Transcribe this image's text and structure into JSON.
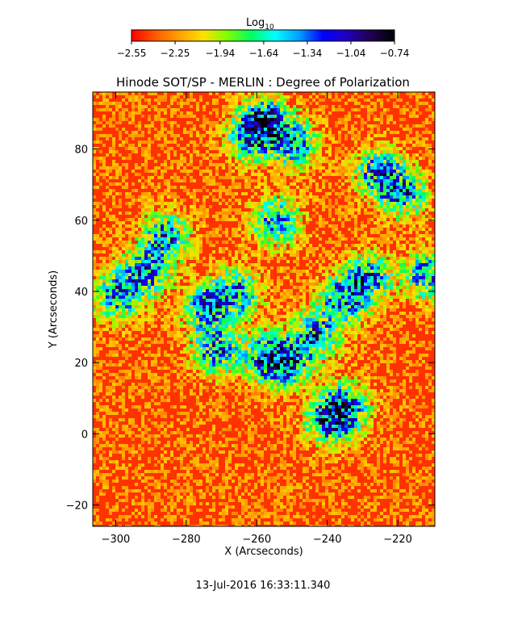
{
  "chart_data": {
    "type": "heatmap",
    "title": "Hinode SOT/SP - MERLIN : Degree of Polarization",
    "xlabel": "X (Arcseconds)",
    "ylabel": "Y (Arcseconds)",
    "xlim": [
      -306.5,
      -209.5
    ],
    "ylim": [
      -26,
      96
    ],
    "x_ticks": [
      {
        "value": -300,
        "label": "−300"
      },
      {
        "value": -280,
        "label": "−280"
      },
      {
        "value": -260,
        "label": "−260"
      },
      {
        "value": -240,
        "label": "−240"
      },
      {
        "value": -220,
        "label": "−220"
      }
    ],
    "y_ticks": [
      {
        "value": -20,
        "label": "−20"
      },
      {
        "value": 0,
        "label": "0"
      },
      {
        "value": 20,
        "label": "20"
      },
      {
        "value": 40,
        "label": "40"
      },
      {
        "value": 60,
        "label": "60"
      },
      {
        "value": 80,
        "label": "80"
      }
    ],
    "colorbar": {
      "label": "Log",
      "label_subscript": "10",
      "min": -2.55,
      "max": -0.74,
      "scale": "log10",
      "ticks": [
        {
          "value": -2.55,
          "label": "−2.55"
        },
        {
          "value": -2.25,
          "label": "−2.25"
        },
        {
          "value": -1.94,
          "label": "−1.94"
        },
        {
          "value": -1.64,
          "label": "−1.64"
        },
        {
          "value": -1.34,
          "label": "−1.34"
        },
        {
          "value": -1.04,
          "label": "−1.04"
        },
        {
          "value": -0.74,
          "label": "−0.74"
        }
      ],
      "colors": [
        "#ff0000",
        "#ff5a00",
        "#ffa000",
        "#ffe000",
        "#80ff00",
        "#00ff60",
        "#00ffff",
        "#00a0ff",
        "#0000ff",
        "#2000c0",
        "#200050",
        "#000000"
      ]
    },
    "network_centers": [
      {
        "x": -275,
        "y": 36
      },
      {
        "x": -266,
        "y": 40
      },
      {
        "x": -272,
        "y": 24
      },
      {
        "x": -258,
        "y": 22
      },
      {
        "x": -252,
        "y": 20
      },
      {
        "x": -235,
        "y": 8
      },
      {
        "x": -240,
        "y": 4
      },
      {
        "x": -229,
        "y": 44
      },
      {
        "x": -212,
        "y": 45
      },
      {
        "x": -262,
        "y": 84
      },
      {
        "x": -250,
        "y": 82
      },
      {
        "x": -258,
        "y": 89
      },
      {
        "x": -226,
        "y": 74
      },
      {
        "x": -219,
        "y": 68
      },
      {
        "x": -286,
        "y": 56
      },
      {
        "x": -292,
        "y": 46
      },
      {
        "x": -300,
        "y": 39
      },
      {
        "x": -255,
        "y": 60
      },
      {
        "x": -236,
        "y": 38
      },
      {
        "x": -244,
        "y": 28
      }
    ],
    "grid": false
  },
  "timestamp": "13-Jul-2016 16:33:11.340"
}
